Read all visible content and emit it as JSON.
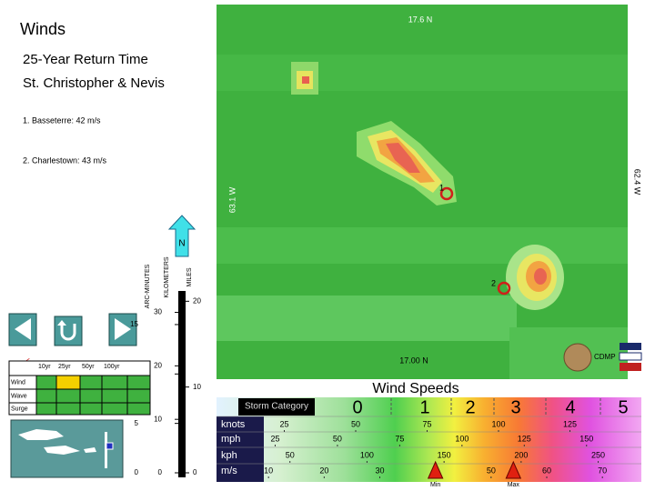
{
  "header": {
    "title": "Winds",
    "subtitle": "25-Year Return Time",
    "location": "St. Christopher & Nevis"
  },
  "sites": [
    {
      "label": "1. Basseterre:  42 m/s",
      "map_label": "1"
    },
    {
      "label": "2. Charlestown:  43 m/s",
      "map_label": "2"
    }
  ],
  "map": {
    "top_lat": "17.6 N",
    "bottom_lat": "17.00 N",
    "west_lon": "63.1 W",
    "east_lon": "62.4 W",
    "north": "N",
    "credit": "CDMP"
  },
  "scale": {
    "axes": [
      {
        "name": "ARC-MINUTES",
        "lim": [
          0,
          18.4
        ],
        "ticks": [
          0,
          5,
          10,
          15
        ]
      },
      {
        "name": "KILOMETERS",
        "lim": [
          0,
          34
        ],
        "ticks": [
          0,
          10,
          20,
          30
        ]
      },
      {
        "name": "MILES",
        "lim": [
          0,
          21.2
        ],
        "ticks": [
          0,
          10,
          20
        ]
      }
    ]
  },
  "selector": {
    "title": "SELE",
    "columns": [
      "10yr",
      "25yr",
      "50yr",
      "100yr"
    ],
    "rows": [
      "Wind",
      "Wave",
      "Surge"
    ],
    "selected_cell": {
      "row": 0,
      "column": 1
    }
  },
  "wind_speeds": {
    "title": "Wind Speeds",
    "category_title": "Storm Category",
    "categories": [
      "0",
      "1",
      "2",
      "3",
      "4",
      "5"
    ],
    "units": [
      {
        "name": "knots",
        "lim": [
          0,
          150
        ],
        "ticks": [
          25,
          50,
          75,
          100,
          125
        ]
      },
      {
        "name": "mph",
        "lim": [
          0,
          172
        ],
        "ticks": [
          25,
          50,
          75,
          100,
          125,
          150
        ]
      },
      {
        "name": "kph",
        "lim": [
          0,
          278
        ],
        "ticks": [
          50,
          100,
          150,
          200,
          250
        ]
      },
      {
        "name": "m/s",
        "lim": [
          0,
          77
        ],
        "ticks": [
          10,
          20,
          30,
          50,
          60,
          70
        ]
      }
    ],
    "markers": [
      {
        "label": "Min",
        "value": 40
      },
      {
        "label": "Max",
        "value": 54
      }
    ]
  }
}
